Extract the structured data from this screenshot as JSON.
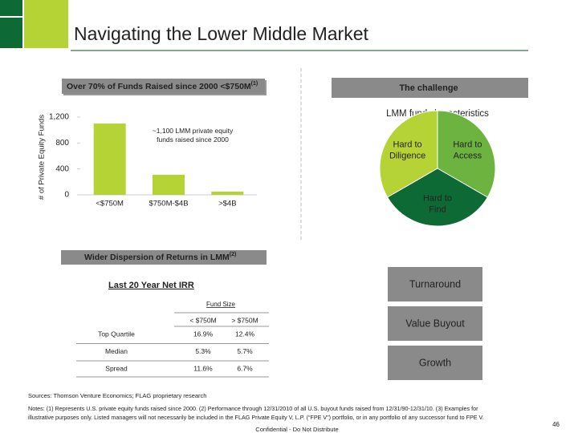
{
  "header": {
    "title": "Navigating the Lower Middle Market"
  },
  "left_box": {
    "title": "Over 70% of Funds Raised since 2000 <$750M",
    "note": "(1)"
  },
  "right_box": {
    "title": "The challenge"
  },
  "chart_data": [
    {
      "type": "bar",
      "y_label": "# of Private Equity Funds",
      "annotation": "~1,100 LMM private equity funds raised since 2000",
      "categories": [
        "<$750M",
        "$750M-$4B",
        ">$4B"
      ],
      "values": [
        1100,
        310,
        50
      ],
      "color": "#b5d334",
      "ylim": [
        0,
        1200
      ],
      "yticks": [
        0,
        400,
        800,
        {
          "value": 1200,
          "label": "1,200"
        }
      ],
      "grid": false
    },
    {
      "type": "pie",
      "title": "LMM fund characteristics",
      "categories": [
        "Hard to Diligence",
        "Hard to Access",
        "Hard to Find"
      ],
      "values": [
        33.3,
        33.3,
        33.3
      ],
      "colors": [
        "#b5d334",
        "#6cb33f",
        "#0e6a35"
      ]
    }
  ],
  "dispersion_box": {
    "title": "Wider Dispersion of Returns in LMM",
    "note": "(2)"
  },
  "irr": {
    "title": "Last 20 Year Net IRR",
    "group_header": "Fund Size",
    "columns": [
      "< $750M",
      "> $750M"
    ],
    "rows": [
      [
        "Top Quartile",
        "16.9%",
        "12.4%"
      ],
      [
        "Median",
        "5.3%",
        "5.7%"
      ],
      [
        "Spread",
        "11.6%",
        "6.7%"
      ]
    ]
  },
  "strategies": [
    "Turnaround",
    "Value Buyout",
    "Growth"
  ],
  "footer": {
    "sources": "Sources: Thomson Venture Economics; FLAG proprietary research",
    "notes": [
      "Notes: (1) Represents U.S. private equity funds raised since 2000. (2) Performance through 12/31/2010 of all U.S. buyout funds raised from 12/31/90-12/31/10. (3) Examples for",
      "illustrative purposes only. Listed managers will not necessarily be included in the FLAG Private Equity V, L.P. (“FPE V”) portfolio, or in any portfolio of any successor fund to FPE V."
    ],
    "confidential": "Confidential - Do Not Distribute",
    "page": "46"
  }
}
